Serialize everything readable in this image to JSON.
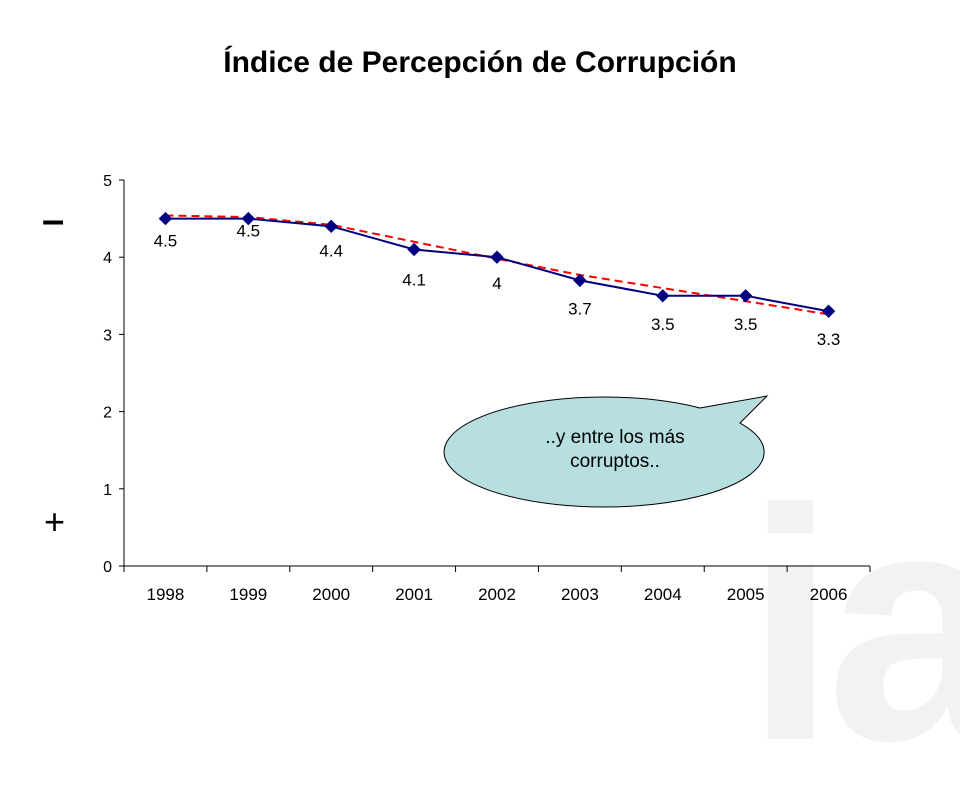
{
  "slide": {
    "title": "Índice de Percepción de Corrupción",
    "watermark_text": "ia"
  },
  "markers": {
    "minus": "–",
    "plus": "+"
  },
  "callout": {
    "text": "..y entre los más corruptos..",
    "fill_color": "#b8dfe0"
  },
  "chart_data": {
    "type": "line",
    "categories": [
      "1998",
      "1999",
      "2000",
      "2001",
      "2002",
      "2003",
      "2004",
      "2005",
      "2006"
    ],
    "series": [
      {
        "values": [
          4.5,
          4.5,
          4.4,
          4.1,
          4.0,
          3.7,
          3.5,
          3.5,
          3.3
        ],
        "data_labels": [
          "4.5",
          "4.5",
          "4.4",
          "4.1",
          "4",
          "3.7",
          "3.5",
          "3.5",
          "3.3"
        ],
        "color": "#000080",
        "marker": "diamond"
      },
      {
        "values": [
          4.54,
          4.52,
          4.42,
          4.2,
          3.98,
          3.77,
          3.6,
          3.43,
          3.26
        ],
        "color": "#ff0000",
        "style": "dashed",
        "role": "trendline"
      }
    ],
    "y_ticks": [
      "0",
      "1",
      "2",
      "3",
      "4",
      "5"
    ],
    "ylim": [
      0,
      5
    ],
    "grid": false,
    "legend": "none",
    "title": "",
    "xlabel": "",
    "ylabel": ""
  }
}
